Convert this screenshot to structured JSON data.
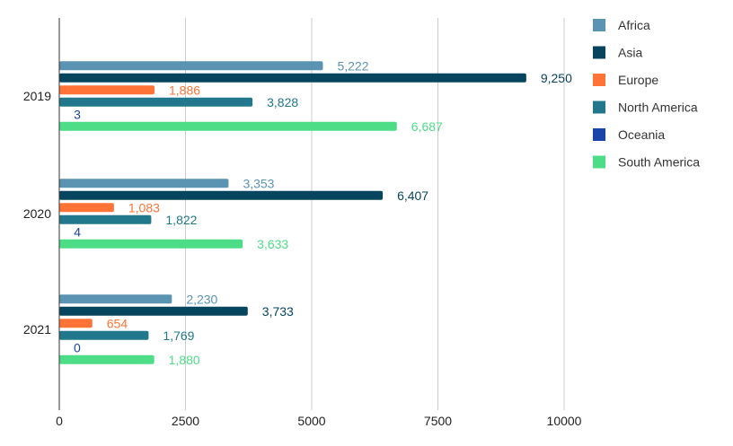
{
  "chart_data": {
    "type": "bar",
    "orientation": "horizontal",
    "categories": [
      "2019",
      "2020",
      "2021"
    ],
    "series": [
      {
        "name": "Africa",
        "color": "#5b93b3",
        "values": [
          5222,
          3353,
          2230
        ],
        "labels": [
          "5,222",
          "3,353",
          "2,230"
        ]
      },
      {
        "name": "Asia",
        "color": "#07455f",
        "values": [
          9250,
          6407,
          3733
        ],
        "labels": [
          "9,250",
          "6,407",
          "3,733"
        ]
      },
      {
        "name": "Europe",
        "color": "#ff7336",
        "values": [
          1886,
          1083,
          654
        ],
        "labels": [
          "1,886",
          "1,083",
          "654"
        ]
      },
      {
        "name": "North America",
        "color": "#21788c",
        "values": [
          3828,
          1822,
          1769
        ],
        "labels": [
          "3,828",
          "1,822",
          "1,769"
        ]
      },
      {
        "name": "Oceania",
        "color": "#1a45a8",
        "values": [
          3,
          4,
          0
        ],
        "labels": [
          "3",
          "4",
          "0"
        ]
      },
      {
        "name": "South America",
        "color": "#4ddd87",
        "values": [
          6687,
          3633,
          1880
        ],
        "labels": [
          "6,687",
          "3,633",
          "1,880"
        ]
      }
    ],
    "xticks": [
      0,
      2500,
      5000,
      7500,
      10000
    ],
    "xtick_labels": [
      "0",
      "2500",
      "5000",
      "7500",
      "10000"
    ],
    "xlim": [
      0,
      10000
    ],
    "grid": "vertical",
    "legend": "right",
    "title": "",
    "xlabel": "",
    "ylabel": ""
  }
}
